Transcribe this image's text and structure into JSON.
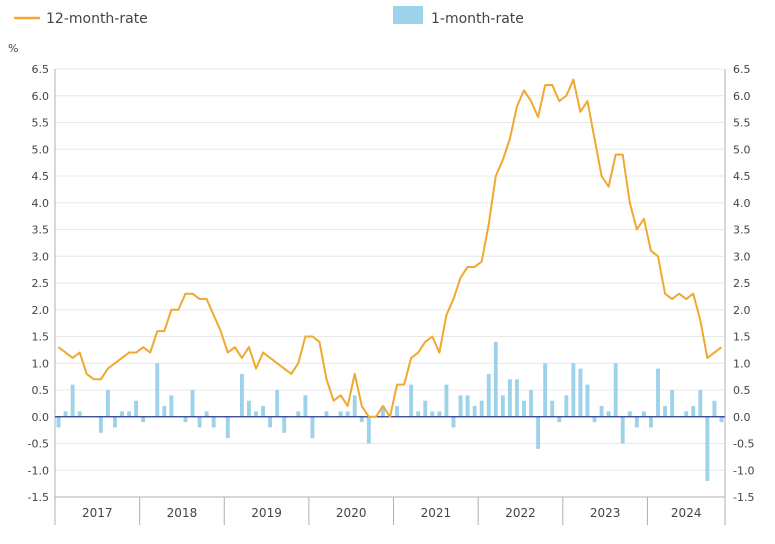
{
  "legend": {
    "line_label": "12-month-rate",
    "bar_label": "1-month-rate"
  },
  "unit_label": "%",
  "colors": {
    "line": "#F0A830",
    "bar": "#9DD3EA",
    "zero_line": "#2A3A8C",
    "grid": "#E8E8E8",
    "axis": "#B0B0B0",
    "text": "#444444"
  },
  "chart_data": {
    "type": "bar",
    "y_ticks": [
      "6.5",
      "6.0",
      "5.5",
      "5.0",
      "4.5",
      "4.0",
      "3.5",
      "3.0",
      "2.5",
      "2.0",
      "1.5",
      "1.0",
      "0.5",
      "0.0",
      "-0.5",
      "-1.0",
      "-1.5"
    ],
    "ylim": [
      -1.5,
      6.5
    ],
    "years": [
      "2017",
      "2018",
      "2019",
      "2020",
      "2021",
      "2022",
      "2023",
      "2024"
    ],
    "x_start": "2017-01",
    "legend_position": "top",
    "grid": true,
    "series": [
      {
        "name": "12-month-rate",
        "kind": "line",
        "values": [
          1.3,
          1.2,
          1.1,
          1.2,
          0.8,
          0.7,
          0.7,
          0.9,
          1.0,
          1.1,
          1.2,
          1.2,
          1.3,
          1.2,
          1.6,
          1.6,
          2.0,
          2.0,
          2.3,
          2.3,
          2.2,
          2.2,
          1.9,
          1.6,
          1.2,
          1.3,
          1.1,
          1.3,
          0.9,
          1.2,
          1.1,
          1.0,
          0.9,
          0.8,
          1.0,
          1.5,
          1.5,
          1.4,
          0.7,
          0.3,
          0.4,
          0.2,
          0.8,
          0.2,
          0.0,
          0.0,
          0.2,
          0.0,
          0.6,
          0.6,
          1.1,
          1.2,
          1.4,
          1.5,
          1.2,
          1.9,
          2.2,
          2.6,
          2.8,
          2.8,
          2.9,
          3.6,
          4.5,
          4.8,
          5.2,
          5.8,
          6.1,
          5.9,
          5.6,
          6.2,
          6.2,
          5.9,
          6.0,
          6.3,
          5.7,
          5.9,
          5.2,
          4.5,
          4.3,
          4.9,
          4.9,
          4.0,
          3.5,
          3.7,
          3.1,
          3.0,
          2.3,
          2.2,
          2.3,
          2.2,
          2.3,
          1.8,
          1.1,
          1.2,
          1.3
        ]
      },
      {
        "name": "1-month-rate",
        "kind": "bar",
        "values": [
          -0.2,
          0.1,
          0.6,
          0.1,
          0.0,
          0.0,
          -0.3,
          0.5,
          -0.2,
          0.1,
          0.1,
          0.3,
          -0.1,
          0.0,
          1.0,
          0.2,
          0.4,
          0.0,
          -0.1,
          0.5,
          -0.2,
          0.1,
          -0.2,
          0.0,
          -0.4,
          0.0,
          0.8,
          0.3,
          0.1,
          0.2,
          -0.2,
          0.5,
          -0.3,
          0.0,
          0.1,
          0.4,
          -0.4,
          0.0,
          0.1,
          0.0,
          0.1,
          0.1,
          0.4,
          -0.1,
          -0.5,
          0.0,
          0.2,
          0.0,
          0.2,
          0.0,
          0.6,
          0.1,
          0.3,
          0.1,
          0.1,
          0.6,
          -0.2,
          0.4,
          0.4,
          0.2,
          0.3,
          0.8,
          1.4,
          0.4,
          0.7,
          0.7,
          0.3,
          0.5,
          -0.6,
          1.0,
          0.3,
          -0.1,
          0.4,
          1.0,
          0.9,
          0.6,
          -0.1,
          0.2,
          0.1,
          1.0,
          -0.5,
          0.1,
          -0.2,
          0.1,
          -0.2,
          0.9,
          0.2,
          0.5,
          0.0,
          0.1,
          0.2,
          0.5,
          -1.2,
          0.3,
          -0.1
        ]
      }
    ]
  }
}
